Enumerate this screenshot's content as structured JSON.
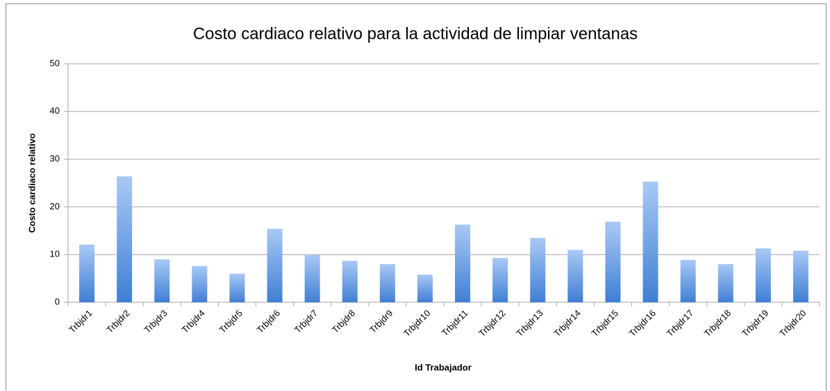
{
  "chart_data": {
    "type": "bar",
    "title": "Costo cardiaco relativo para la actividad de limpiar ventanas",
    "x_label": "Id Trabajador",
    "y_label": "Costo cardiaco relativo",
    "categories": [
      "Trbjdr1",
      "Trbjdr2",
      "Trbjdr3",
      "Trbjdr4",
      "Trbjdr5",
      "Trbjdr6",
      "Trbjdr7",
      "Trbjdr8",
      "Trbjdr9",
      "Trbjdr10",
      "Trbjdr11",
      "Trbjdr12",
      "Trbjdr13",
      "Trbjdr14",
      "Trbjdr15",
      "Trbjdr16",
      "Trbjdr17",
      "Trbjdr18",
      "Trbjdr19",
      "Trbjdr20"
    ],
    "values": [
      12.1,
      26.4,
      9.0,
      7.6,
      6.0,
      15.4,
      9.9,
      8.7,
      8.0,
      5.8,
      16.3,
      9.3,
      13.5,
      11.0,
      16.9,
      25.3,
      8.9,
      8.0,
      11.3,
      10.8
    ],
    "color": "#4a86d6",
    "ylim": [
      0,
      50
    ],
    "yticks": [
      0,
      10,
      20,
      30,
      40,
      50
    ],
    "grid": true
  }
}
